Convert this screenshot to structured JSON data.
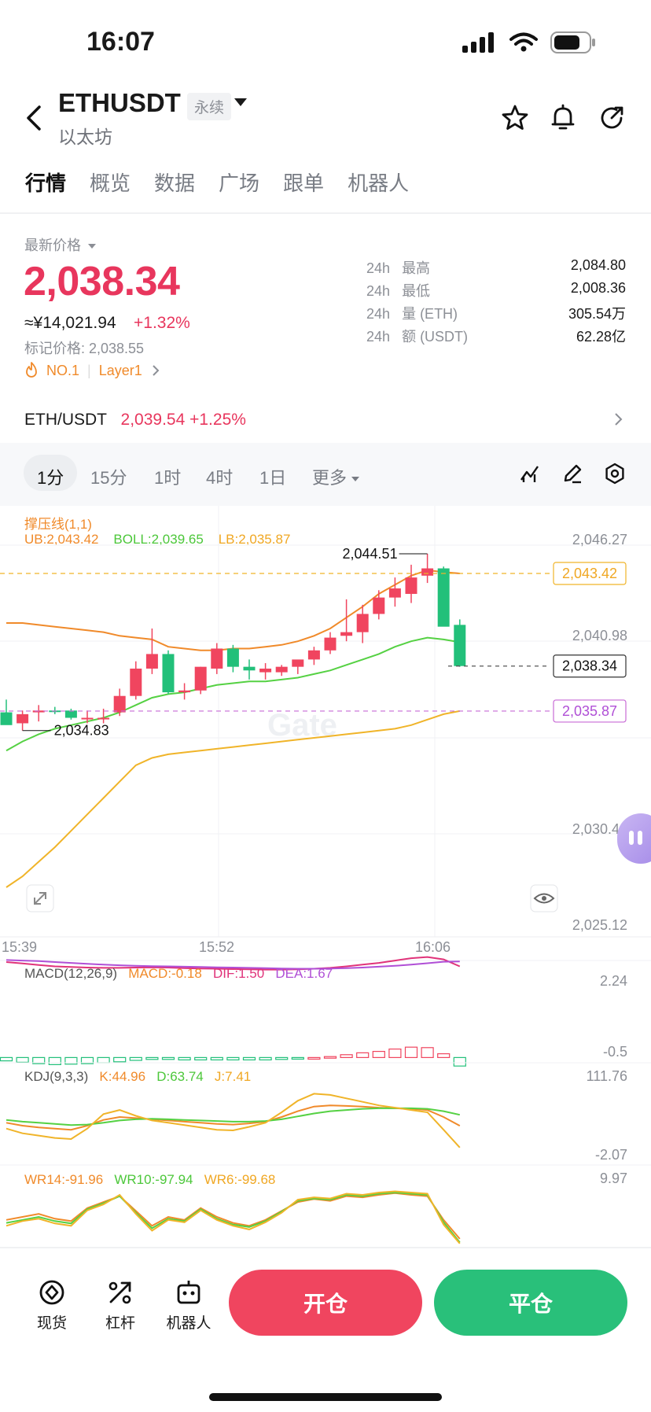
{
  "status": {
    "time": "16:07"
  },
  "header": {
    "symbol": "ETHUSDT",
    "badge": "永续",
    "subname": "以太坊"
  },
  "tabs": [
    "行情",
    "概览",
    "数据",
    "广场",
    "跟单",
    "机器人"
  ],
  "price": {
    "label": "最新价格",
    "last": "2,038.34",
    "cny": "≈¥14,021.94",
    "change": "+1.32%",
    "mark": "标记价格: 2,038.55",
    "rank": "NO.1",
    "sector": "Layer1"
  },
  "stats": [
    {
      "prefix": "24h",
      "label": "最高",
      "value": "2,084.80"
    },
    {
      "prefix": "24h",
      "label": "最低",
      "value": "2,008.36"
    },
    {
      "prefix": "24h",
      "label": "量 (ETH)",
      "value": "305.54万"
    },
    {
      "prefix": "24h",
      "label": "额 (USDT)",
      "value": "62.28亿"
    }
  ],
  "spot": {
    "pair": "ETH/USDT",
    "price": "2,039.54",
    "change": "+1.25%"
  },
  "timeframes": [
    "1分",
    "15分",
    "1时",
    "4时",
    "1日",
    "更多"
  ],
  "chart": {
    "legend_title": "撑压线(1,1)",
    "ub": "UB:2,043.42",
    "boll": "BOLL:2,039.65",
    "lb": "LB:2,035.87",
    "y_ticks": [
      "2,046.27",
      "2,040.98",
      "2,030.40",
      "2,025.12"
    ],
    "x_ticks": [
      "15:39",
      "15:52",
      "16:06"
    ],
    "high_label": "2,044.51",
    "low_label": "2,034.83",
    "ub_tag": "2,043.42",
    "last_tag": "2,038.34",
    "lb_tag": "2,035.87",
    "watermark": "Gate",
    "colors": {
      "up": "#f0455f",
      "down": "#22c07a",
      "ub": "#f08a2a",
      "mid": "#55d143",
      "lb": "#f0b429"
    }
  },
  "chart_data": {
    "type": "candlestick",
    "ylim": [
      2025.12,
      2046.27
    ],
    "candles": [
      {
        "o": 2035.8,
        "h": 2036.5,
        "l": 2035.2,
        "c": 2035.1
      },
      {
        "o": 2035.2,
        "h": 2035.9,
        "l": 2034.8,
        "c": 2035.7
      },
      {
        "o": 2035.8,
        "h": 2036.2,
        "l": 2035.3,
        "c": 2035.9
      },
      {
        "o": 2035.9,
        "h": 2036.1,
        "l": 2035.7,
        "c": 2035.85
      },
      {
        "o": 2035.9,
        "h": 2036.0,
        "l": 2035.4,
        "c": 2035.5
      },
      {
        "o": 2035.5,
        "h": 2035.9,
        "l": 2035.2,
        "c": 2035.5
      },
      {
        "o": 2035.5,
        "h": 2036.0,
        "l": 2035.2,
        "c": 2035.5
      },
      {
        "o": 2035.8,
        "h": 2037.1,
        "l": 2035.6,
        "c": 2036.7
      },
      {
        "o": 2036.7,
        "h": 2038.6,
        "l": 2036.5,
        "c": 2038.2
      },
      {
        "o": 2038.2,
        "h": 2040.4,
        "l": 2037.9,
        "c": 2039.0
      },
      {
        "o": 2039.0,
        "h": 2039.2,
        "l": 2036.8,
        "c": 2036.9
      },
      {
        "o": 2036.9,
        "h": 2037.4,
        "l": 2036.5,
        "c": 2037.0
      },
      {
        "o": 2037.0,
        "h": 2038.3,
        "l": 2036.8,
        "c": 2038.3
      },
      {
        "o": 2038.2,
        "h": 2039.6,
        "l": 2037.9,
        "c": 2039.3
      },
      {
        "o": 2039.3,
        "h": 2039.5,
        "l": 2038.0,
        "c": 2038.3
      },
      {
        "o": 2038.3,
        "h": 2038.7,
        "l": 2037.6,
        "c": 2038.1
      },
      {
        "o": 2038.0,
        "h": 2038.5,
        "l": 2037.6,
        "c": 2038.2
      },
      {
        "o": 2038.0,
        "h": 2038.4,
        "l": 2037.8,
        "c": 2038.3
      },
      {
        "o": 2038.3,
        "h": 2038.6,
        "l": 2037.9,
        "c": 2038.7
      },
      {
        "o": 2038.7,
        "h": 2039.4,
        "l": 2038.4,
        "c": 2039.2
      },
      {
        "o": 2039.2,
        "h": 2040.2,
        "l": 2039.0,
        "c": 2039.9
      },
      {
        "o": 2040.0,
        "h": 2042.0,
        "l": 2039.7,
        "c": 2040.2
      },
      {
        "o": 2040.2,
        "h": 2041.7,
        "l": 2039.6,
        "c": 2041.2
      },
      {
        "o": 2041.2,
        "h": 2042.5,
        "l": 2040.9,
        "c": 2042.1
      },
      {
        "o": 2042.1,
        "h": 2043.2,
        "l": 2041.6,
        "c": 2042.6
      },
      {
        "o": 2042.3,
        "h": 2043.9,
        "l": 2041.8,
        "c": 2043.2
      },
      {
        "o": 2043.3,
        "h": 2044.5,
        "l": 2042.9,
        "c": 2043.7
      },
      {
        "o": 2043.7,
        "h": 2043.8,
        "l": 2040.6,
        "c": 2040.5
      },
      {
        "o": 2040.6,
        "h": 2040.9,
        "l": 2038.3,
        "c": 2038.34
      }
    ],
    "ub_line": [
      2040.7,
      2040.7,
      2040.6,
      2040.5,
      2040.4,
      2040.3,
      2040.2,
      2040.0,
      2039.9,
      2039.8,
      2039.4,
      2039.3,
      2039.2,
      2039.2,
      2039.3,
      2039.3,
      2039.4,
      2039.5,
      2039.7,
      2040.0,
      2040.4,
      2041.0,
      2041.6,
      2042.3,
      2042.8,
      2043.3,
      2043.6,
      2043.5,
      2043.42
    ],
    "mid_line": [
      2033.7,
      2034.2,
      2034.6,
      2034.9,
      2035.1,
      2035.3,
      2035.5,
      2035.8,
      2036.2,
      2036.6,
      2036.8,
      2036.9,
      2037.1,
      2037.3,
      2037.4,
      2037.5,
      2037.5,
      2037.6,
      2037.7,
      2037.9,
      2038.1,
      2038.4,
      2038.7,
      2039.0,
      2039.4,
      2039.7,
      2039.9,
      2039.8,
      2039.65
    ],
    "lb_line": [
      2026.2,
      2026.8,
      2027.6,
      2028.4,
      2029.3,
      2030.2,
      2031.1,
      2032.0,
      2032.9,
      2033.3,
      2033.5,
      2033.6,
      2033.7,
      2033.8,
      2033.9,
      2034.0,
      2034.1,
      2034.2,
      2034.3,
      2034.4,
      2034.5,
      2034.6,
      2034.7,
      2034.8,
      2034.9,
      2035.1,
      2035.4,
      2035.7,
      2035.87
    ]
  },
  "macd": {
    "title": "MACD(12,26,9)",
    "macd": "MACD:-0.18",
    "dif": "DIF:1.50",
    "dea": "DEA:1.67",
    "top": "2.24",
    "bottom": "-0.5",
    "dif_values": [
      1.65,
      1.6,
      1.55,
      1.5,
      1.48,
      1.46,
      1.45,
      1.45,
      1.46,
      1.47,
      1.46,
      1.44,
      1.43,
      1.42,
      1.41,
      1.4,
      1.39,
      1.39,
      1.4,
      1.42,
      1.45,
      1.5,
      1.56,
      1.62,
      1.7,
      1.78,
      1.82,
      1.74,
      1.5
    ],
    "dea_values": [
      1.72,
      1.7,
      1.68,
      1.65,
      1.62,
      1.59,
      1.56,
      1.54,
      1.52,
      1.51,
      1.5,
      1.49,
      1.48,
      1.47,
      1.46,
      1.45,
      1.44,
      1.43,
      1.42,
      1.42,
      1.43,
      1.44,
      1.46,
      1.49,
      1.52,
      1.56,
      1.61,
      1.66,
      1.67
    ],
    "hist": [
      -0.07,
      -0.1,
      -0.13,
      -0.15,
      -0.14,
      -0.13,
      -0.11,
      -0.09,
      -0.06,
      -0.04,
      -0.04,
      -0.05,
      -0.05,
      -0.05,
      -0.05,
      -0.05,
      -0.05,
      -0.04,
      -0.02,
      0.0,
      0.02,
      0.06,
      0.1,
      0.13,
      0.18,
      0.22,
      0.21,
      0.08,
      -0.18
    ]
  },
  "kdj": {
    "title": "KDJ(9,3,3)",
    "k": "K:44.96",
    "d": "D:63.74",
    "j": "J:7.41",
    "top": "111.76",
    "bottom": "-2.07",
    "k_values": [
      50,
      45,
      42,
      40,
      38,
      45,
      55,
      60,
      58,
      56,
      54,
      52,
      50,
      48,
      47,
      49,
      52,
      60,
      70,
      78,
      80,
      79,
      78,
      76,
      75,
      74,
      72,
      60,
      44.96
    ],
    "d_values": [
      55,
      52,
      50,
      48,
      46,
      47,
      50,
      54,
      56,
      57,
      56,
      55,
      54,
      53,
      52,
      52,
      53,
      56,
      61,
      66,
      70,
      72,
      74,
      75,
      75,
      75,
      74,
      70,
      63.74
    ],
    "j_values": [
      40,
      32,
      28,
      24,
      22,
      40,
      65,
      72,
      62,
      54,
      50,
      46,
      42,
      38,
      37,
      43,
      50,
      68,
      88,
      100,
      98,
      92,
      86,
      80,
      76,
      72,
      68,
      38,
      7.41
    ]
  },
  "wr": {
    "wr14": "WR14:-91.96",
    "wr10": "WR10:-97.94",
    "wr6": "WR6:-99.68",
    "top": "9.97",
    "wr14_values": [
      -60,
      -55,
      -50,
      -58,
      -62,
      -40,
      -30,
      -20,
      -45,
      -70,
      -55,
      -60,
      -40,
      -55,
      -65,
      -70,
      -60,
      -45,
      -30,
      -25,
      -28,
      -20,
      -22,
      -18,
      -15,
      -18,
      -20,
      -60,
      -91.96
    ],
    "wr10_values": [
      -65,
      -60,
      -55,
      -62,
      -66,
      -42,
      -32,
      -20,
      -48,
      -74,
      -58,
      -62,
      -42,
      -58,
      -68,
      -72,
      -62,
      -46,
      -28,
      -24,
      -26,
      -18,
      -20,
      -16,
      -14,
      -16,
      -18,
      -64,
      -97.94
    ],
    "wr6_values": [
      -70,
      -62,
      -58,
      -66,
      -70,
      -44,
      -34,
      -18,
      -50,
      -78,
      -60,
      -64,
      -44,
      -60,
      -70,
      -76,
      -64,
      -48,
      -26,
      -22,
      -24,
      -16,
      -18,
      -14,
      -12,
      -14,
      -16,
      -68,
      -99.68
    ]
  },
  "bottom_nav": {
    "spot": "现货",
    "lever": "杠杆",
    "bot": "机器人",
    "open": "开仓",
    "close": "平仓"
  }
}
